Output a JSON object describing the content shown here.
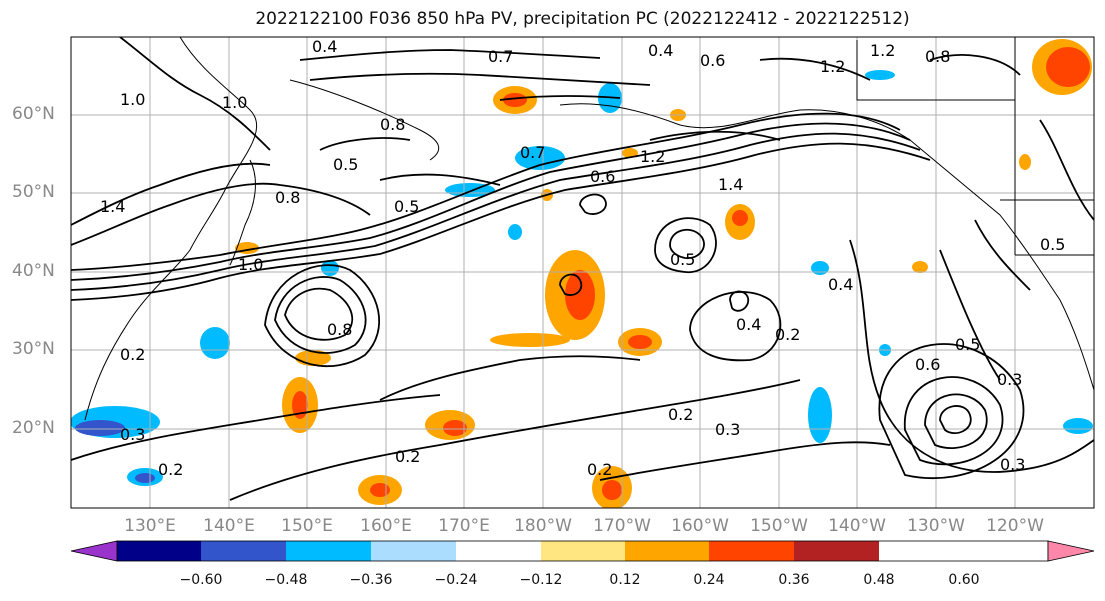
{
  "title": "2022122100 F036 850 hPa PV, precipitation PC (2022122412 - 2022122512)",
  "lat_labels": [
    "60°N",
    "50°N",
    "40°N",
    "30°N",
    "20°N"
  ],
  "lon_labels": [
    "130°E",
    "140°E",
    "150°E",
    "160°E",
    "170°E",
    "180°W",
    "170°W",
    "160°W",
    "150°W",
    "140°W",
    "130°W",
    "120°W"
  ],
  "contour_labels": [
    "0.4",
    "0.7",
    "0.4",
    "0.6",
    "1.2",
    "0.8",
    "1.2",
    "1.0",
    "1.0",
    "0.8",
    "0.5",
    "0.8",
    "1.4",
    "0.7",
    "0.5",
    "1.2",
    "0.6",
    "1.4",
    "0.5",
    "0.8",
    "1.0",
    "0.5",
    "0.4",
    "0.2",
    "0.3",
    "0.6",
    "0.5",
    "0.3",
    "0.2",
    "0.2",
    "0.2",
    "0.2",
    "0.3",
    "0.2",
    "0.3",
    "0.4"
  ],
  "colorbar": {
    "colors": [
      "#9933cc",
      "#000088",
      "#3355cc",
      "#00bbff",
      "#aaddff",
      "#ffffff",
      "#ffe680",
      "#ffa500",
      "#ff4400",
      "#b22222",
      "#ff88aa"
    ],
    "tick_labels": [
      "−0.60",
      "−0.48",
      "−0.36",
      "−0.24",
      "−0.12",
      "0.12",
      "0.24",
      "0.36",
      "0.48",
      "0.60"
    ]
  }
}
